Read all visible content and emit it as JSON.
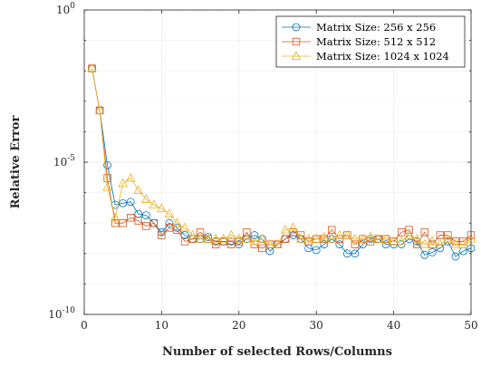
{
  "chart_data": {
    "type": "line",
    "title": "",
    "xlabel": "Number of selected Rows/Columns",
    "ylabel": "Relative Error",
    "xlim": [
      0,
      50
    ],
    "ylim": [
      1e-10,
      1
    ],
    "yscale": "log",
    "xticks": [
      "0",
      "10",
      "20",
      "30",
      "40",
      "50"
    ],
    "yticks": [
      {
        "base": "10",
        "exp": "-10"
      },
      {
        "base": "10",
        "exp": "-5"
      },
      {
        "base": "10",
        "exp": "0"
      }
    ],
    "grid": true,
    "legend_position": "top-right",
    "x": [
      1,
      2,
      3,
      4,
      5,
      6,
      7,
      8,
      9,
      10,
      11,
      12,
      13,
      14,
      15,
      16,
      17,
      18,
      19,
      20,
      21,
      22,
      23,
      24,
      25,
      26,
      27,
      28,
      29,
      30,
      31,
      32,
      33,
      34,
      35,
      36,
      37,
      38,
      39,
      40,
      41,
      42,
      43,
      44,
      45,
      46,
      47,
      48,
      49,
      50
    ],
    "series": [
      {
        "name": "Matrix Size: 256 x 256",
        "color": "#0072BD",
        "marker": "circle",
        "values": [
          0.012,
          0.0005,
          8e-06,
          4e-07,
          4.5e-07,
          5e-07,
          2e-07,
          1.8e-07,
          1e-07,
          5e-08,
          1e-07,
          7e-08,
          4e-08,
          3e-08,
          3e-08,
          3.5e-08,
          2.5e-08,
          2.5e-08,
          2.5e-08,
          2e-08,
          3e-08,
          4e-08,
          3e-08,
          1.2e-08,
          2e-08,
          3e-08,
          4e-08,
          3e-08,
          1.5e-08,
          1.3e-08,
          2e-08,
          3e-08,
          2e-08,
          1e-08,
          1e-08,
          2e-08,
          3e-08,
          3e-08,
          2e-08,
          2e-08,
          2e-08,
          3e-08,
          2.5e-08,
          9e-09,
          1.1e-08,
          1.5e-08,
          2.5e-08,
          8e-09,
          1.2e-08,
          1.5e-08
        ]
      },
      {
        "name": "Matrix Size: 512 x 512",
        "color": "#D95319",
        "marker": "square",
        "values": [
          0.012,
          0.0005,
          3e-06,
          1e-07,
          1e-07,
          1.5e-07,
          1.2e-07,
          8e-08,
          1e-07,
          4e-08,
          7e-08,
          6e-08,
          2.5e-08,
          3e-08,
          5e-08,
          3e-08,
          2e-08,
          2.5e-08,
          2e-08,
          2.5e-08,
          5e-08,
          2e-08,
          1.5e-08,
          2e-08,
          2e-08,
          3e-08,
          5e-08,
          4e-08,
          2.5e-08,
          3e-08,
          3e-08,
          6e-08,
          3e-08,
          4e-08,
          2e-08,
          3e-08,
          2.5e-08,
          3e-08,
          3e-08,
          2.5e-08,
          5e-08,
          6e-08,
          2e-08,
          5e-08,
          2e-08,
          4e-08,
          4e-08,
          2.5e-08,
          2.5e-08,
          4e-08
        ]
      },
      {
        "name": "Matrix Size: 1024 x 1024",
        "color": "#EDB120",
        "marker": "triangle",
        "values": [
          0.012,
          0.0005,
          1.5e-06,
          1.5e-07,
          2e-06,
          3e-06,
          1.2e-06,
          6e-07,
          4e-07,
          3e-07,
          2e-07,
          1e-07,
          7e-08,
          4e-08,
          3e-08,
          3e-08,
          3e-08,
          3e-08,
          4e-08,
          3e-08,
          3e-08,
          2.5e-08,
          3e-08,
          2e-08,
          2e-08,
          6e-08,
          7e-08,
          3e-08,
          3e-08,
          3e-08,
          3.5e-08,
          3e-08,
          4e-08,
          4e-08,
          3e-08,
          3e-08,
          3.5e-08,
          3e-08,
          3e-08,
          2.5e-08,
          2.5e-08,
          4e-08,
          3e-08,
          2e-08,
          2.5e-08,
          2e-08,
          3e-08,
          2e-08,
          2e-08,
          3e-08
        ]
      }
    ]
  }
}
